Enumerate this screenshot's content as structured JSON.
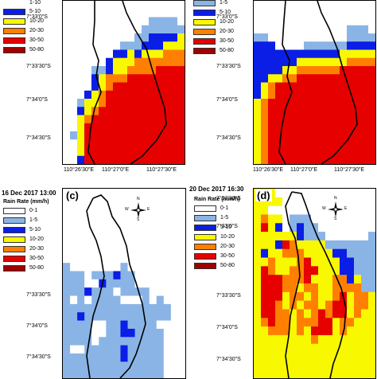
{
  "colors": {
    "0-1": "#ffffff",
    "1-5": "#8ab4e6",
    "5-10": "#0a1ee6",
    "10-20": "#f8f800",
    "20-30": "#ff8000",
    "30-50": "#e60000",
    "50-80": "#a00000"
  },
  "legend_labels": [
    "0-1",
    "1-5",
    "5-10",
    "10-20",
    "20-30",
    "30-50",
    "50-80"
  ],
  "legend_title": "Rain Rate (mm/h)",
  "panels": {
    "a": {
      "legend_labels": [
        "5-10",
        "10-20",
        "20-30",
        "30-50",
        "50-80"
      ],
      "partial_top_label": "1-10"
    },
    "b": {
      "legend_labels": [
        "1-5",
        "5-10",
        "10-20",
        "20-30",
        "30-50",
        "50-80"
      ]
    },
    "c": {
      "title": "16 Dec 2017 13:00",
      "label": "(c)"
    },
    "d": {
      "title": "20 Dec 2017 16:30",
      "label": "(d)"
    }
  },
  "lat_ticks_top": [
    "7°33'0\"S",
    "7°33'30\"S",
    "7°34'0\"S",
    "7°34'30\"S"
  ],
  "lon_ticks": [
    "110°26'30\"E",
    "110°27'0\"E",
    "110°27'30\"E"
  ],
  "lat_ticks_c": [
    "7°33'30\"S",
    "7°34'0\"S",
    "7°34'30\"S"
  ],
  "lat_ticks_d": [
    "7°32'30\"S",
    "7°33'0\"S",
    "7°33'30\"S",
    "7°34'0\"S",
    "7°34'30\"S"
  ],
  "compass": {
    "n": "N",
    "s": "S",
    "e": "E",
    "w": "W"
  },
  "grids": {
    "a": [
      "00000000000000000",
      "00000000000000000",
      "00000000000011110",
      "00000000000111111",
      "00000000001122223",
      "00000000111222333",
      "00000002232333444",
      "00000023334444444",
      "00001123344445555",
      "00002344455555555",
      "00002345555555555",
      "00023455555555555",
      "00133455555555555",
      "00234555555555555",
      "00345555555555555",
      "00355555555555555",
      "01355555555555555",
      "00355555555555555",
      "00355555555555555",
      "00255555555555555"
    ],
    "b": [
      "00000000000000000",
      "00000000000000000",
      "00000000000000000",
      "00000000000001110",
      "11000000000001111",
      "22200001111112222",
      "22222222222233333",
      "22222233333334444",
      "22223344444455555",
      "22334455555555555",
      "23455555555555555",
      "23455555555555555",
      "34555555555555555",
      "34555555555555555",
      "34555555555555555",
      "34555555555555555",
      "34555555555555555",
      "34555555555555555",
      "34555555555555555",
      "34555555555555555"
    ],
    "c": [
      "00000000000000000",
      "00000000000000000",
      "00000000000000000",
      "00000000000000000",
      "00000000000000000",
      "00000000000000000",
      "00000000000000000",
      "00000000000000000",
      "00000000000000000",
      "10000000100000000",
      "11101112110000000",
      "11100211110000000",
      "11121110111100000",
      "10101111000101000",
      "11111111111111100",
      "11211111111111100",
      "11110011211110000",
      "11110011221111000",
      "11110111111111000",
      "10011111211111000",
      "11111111211111000",
      "11111111111111000",
      "11111111111111000"
    ],
    "d": [
      "33300000000000000",
      "33330000000000000",
      "33000000000000000",
      "34330111000000000",
      "35320121100000000",
      "33333321110000001",
      "33325433331111111",
      "32334443333221111",
      "33433345333322111",
      "35433445533322111",
      "35554445333442311",
      "35554434433444411",
      "35553443433453443",
      "35543434434553443",
      "35544343454553433",
      "34544344455344333",
      "33444343555343333",
      "33333333433333333",
      "33333333333333333",
      "33333333333333333",
      "33333333333333333",
      "33333333333333333"
    ]
  }
}
